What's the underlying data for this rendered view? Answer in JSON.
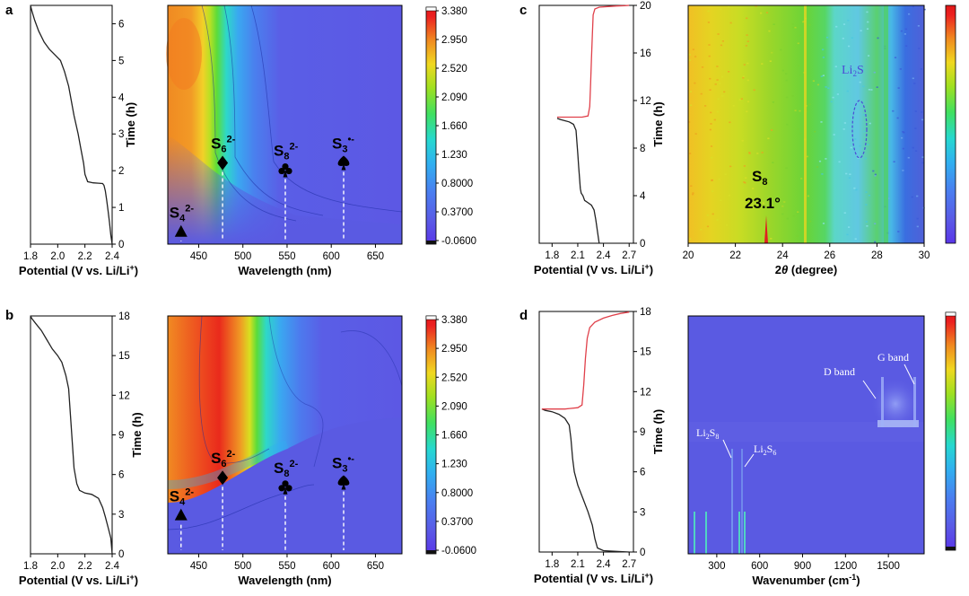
{
  "panels": {
    "a": {
      "letter": "a"
    },
    "b": {
      "letter": "b"
    },
    "c": {
      "letter": "c"
    },
    "d": {
      "letter": "d"
    }
  },
  "colorbar_labels": [
    "3.380",
    "2.950",
    "2.520",
    "2.090",
    "1.660",
    "1.230",
    "0.8000",
    "0.3700",
    "-0.0600"
  ],
  "colors": {
    "curve_discharge": "#222222",
    "curve_charge": "#e0404a",
    "map_background": "#5a5ae0",
    "marker_line": "#ffffff"
  },
  "chart_data": [
    {
      "id": "a-potential",
      "type": "line",
      "xlabel_main": "Potential (V vs. Li/Li",
      "xlabel_sup": "+",
      "xlabel_close": ")",
      "ylabel": "Time (h)",
      "xlim": [
        1.8,
        2.4
      ],
      "ylim": [
        0,
        6.5
      ],
      "xticks": [
        "1.8",
        "2.0",
        "2.2",
        "2.4"
      ],
      "xtick_values": [
        1.8,
        2.0,
        2.2,
        2.4
      ],
      "yticks": [
        "0",
        "1",
        "2",
        "3",
        "4",
        "5",
        "6"
      ],
      "ytick_values": [
        0,
        1,
        2,
        3,
        4,
        5,
        6
      ],
      "series": [
        {
          "x": [
            2.4,
            2.39,
            2.38,
            2.37,
            2.36,
            2.35,
            2.34,
            2.33,
            2.3,
            2.26,
            2.22,
            2.2,
            2.19,
            2.17,
            2.15,
            2.12,
            2.1,
            2.08,
            2.05,
            2.02,
            1.98,
            1.94,
            1.9,
            1.86,
            1.83,
            1.81,
            1.8
          ],
          "y": [
            0.0,
            0.25,
            0.6,
            0.9,
            1.2,
            1.45,
            1.6,
            1.65,
            1.66,
            1.67,
            1.7,
            1.9,
            2.2,
            2.6,
            3.0,
            3.5,
            3.9,
            4.3,
            4.7,
            5.0,
            5.15,
            5.3,
            5.5,
            5.8,
            6.1,
            6.35,
            6.5
          ]
        }
      ]
    },
    {
      "id": "a-map",
      "type": "heatmap",
      "xlabel": "Wavelength (nm)",
      "xlim": [
        415,
        680
      ],
      "xticks": [
        "450",
        "500",
        "550",
        "600",
        "650"
      ],
      "xtick_values": [
        450,
        500,
        550,
        600,
        650
      ],
      "value_range": [
        -0.06,
        3.38
      ],
      "markers": [
        {
          "species": "S",
          "sub": "4",
          "sup": "2-",
          "shape": "triangle",
          "x": 430,
          "t_frac": 0.05
        },
        {
          "species": "S",
          "sub": "6",
          "sup": "2-",
          "shape": "diamond",
          "x": 477,
          "t_frac": 0.34
        },
        {
          "species": "S",
          "sub": "8",
          "sup": "2-",
          "shape": "club",
          "x": 548,
          "t_frac": 0.31
        },
        {
          "species": "S",
          "sub": "3",
          "sup": "•-",
          "shape": "spade",
          "x": 614,
          "t_frac": 0.34
        }
      ]
    },
    {
      "id": "b-potential",
      "type": "line",
      "xlabel_main": "Potential (V vs. Li/Li",
      "xlabel_sup": "+",
      "xlabel_close": ")",
      "ylabel": "Time (h)",
      "xlim": [
        1.8,
        2.4
      ],
      "ylim": [
        0,
        18
      ],
      "xticks": [
        "1.8",
        "2.0",
        "2.2",
        "2.4"
      ],
      "xtick_values": [
        1.8,
        2.0,
        2.2,
        2.4
      ],
      "yticks": [
        "0",
        "3",
        "6",
        "9",
        "12",
        "15",
        "18"
      ],
      "ytick_values": [
        0,
        3,
        6,
        9,
        12,
        15,
        18
      ],
      "series": [
        {
          "x": [
            2.4,
            2.39,
            2.37,
            2.35,
            2.33,
            2.3,
            2.25,
            2.2,
            2.16,
            2.14,
            2.12,
            2.11,
            2.1,
            2.09,
            2.08,
            2.06,
            2.03,
            2.0,
            1.96,
            1.92,
            1.88,
            1.84,
            1.81,
            1.8
          ],
          "y": [
            0.0,
            1.2,
            2.0,
            2.8,
            3.5,
            4.2,
            4.5,
            4.6,
            4.8,
            5.3,
            6.5,
            8.0,
            9.5,
            11.0,
            12.5,
            13.5,
            14.5,
            15.0,
            15.5,
            16.2,
            16.9,
            17.4,
            17.8,
            18.0
          ]
        }
      ]
    },
    {
      "id": "b-map",
      "type": "heatmap",
      "xlabel": "Wavelength (nm)",
      "xlim": [
        415,
        680
      ],
      "xticks": [
        "450",
        "500",
        "550",
        "600",
        "650"
      ],
      "xtick_values": [
        450,
        500,
        550,
        600,
        650
      ],
      "value_range": [
        -0.06,
        3.38
      ],
      "markers": [
        {
          "species": "S",
          "sub": "4",
          "sup": "2-",
          "shape": "triangle",
          "x": 430,
          "t_frac": 0.16
        },
        {
          "species": "S",
          "sub": "6",
          "sup": "2-",
          "shape": "diamond",
          "x": 477,
          "t_frac": 0.32
        },
        {
          "species": "S",
          "sub": "8",
          "sup": "2-",
          "shape": "club",
          "x": 548,
          "t_frac": 0.28
        },
        {
          "species": "S",
          "sub": "3",
          "sup": "•-",
          "shape": "spade",
          "x": 614,
          "t_frac": 0.3
        }
      ]
    },
    {
      "id": "c-potential",
      "type": "line",
      "xlabel_main": "Potential (V vs. Li/Li",
      "xlabel_sup": "+",
      "xlabel_close": ")",
      "ylabel": "Time (h)",
      "xlim": [
        1.65,
        2.75
      ],
      "ylim": [
        0,
        20
      ],
      "xticks": [
        "1.8",
        "2.1",
        "2.4",
        "2.7"
      ],
      "xtick_values": [
        1.8,
        2.1,
        2.4,
        2.7
      ],
      "yticks": [
        "0",
        "4",
        "8",
        "12",
        "16",
        "20"
      ],
      "ytick_values": [
        0,
        4,
        8,
        12,
        16,
        20
      ],
      "series": [
        {
          "name": "",
          "role": "discharge",
          "x": [
            2.35,
            2.33,
            2.31,
            2.29,
            2.26,
            2.22,
            2.18,
            2.16,
            2.14,
            2.13,
            2.12,
            2.11,
            2.1,
            2.09,
            2.08,
            2.05,
            2.0,
            1.95,
            1.9,
            1.86
          ],
          "y": [
            0.0,
            1.0,
            2.0,
            2.8,
            3.2,
            3.4,
            3.6,
            4.0,
            4.2,
            4.6,
            5.5,
            6.5,
            7.5,
            8.5,
            9.5,
            10.0,
            10.2,
            10.3,
            10.4,
            10.5
          ]
        },
        {
          "name": "",
          "role": "charge",
          "x": [
            1.86,
            1.95,
            2.05,
            2.15,
            2.22,
            2.24,
            2.25,
            2.26,
            2.27,
            2.28,
            2.3,
            2.35,
            2.45,
            2.55,
            2.65,
            2.7
          ],
          "y": [
            10.6,
            10.6,
            10.6,
            10.6,
            10.7,
            11.5,
            13.5,
            15.5,
            17.5,
            19.2,
            19.7,
            19.85,
            19.9,
            19.95,
            19.98,
            20.0
          ]
        }
      ]
    },
    {
      "id": "c-map",
      "type": "heatmap",
      "xlabel_theta": "θ",
      "xlabel_pre": "2",
      "xlabel_post": " (degree)",
      "xlim": [
        20,
        30
      ],
      "xticks": [
        "20",
        "22",
        "24",
        "26",
        "28",
        "30"
      ],
      "xtick_values": [
        20,
        22,
        24,
        26,
        28,
        30
      ],
      "annotations": {
        "s8_main": "S",
        "s8_sub": "8",
        "s8_angle": "23.1°",
        "li2s_main": "Li",
        "li2s_sub": "2",
        "li2s_tail": "S"
      }
    },
    {
      "id": "d-potential",
      "type": "line",
      "xlabel_main": "Potential (V vs. Li/Li",
      "xlabel_sup": "+",
      "xlabel_close": ")",
      "ylabel": "Time (h)",
      "xlim": [
        1.65,
        2.75
      ],
      "ylim": [
        0,
        18
      ],
      "xticks": [
        "1.8",
        "2.1",
        "2.4",
        "2.7"
      ],
      "xtick_values": [
        1.8,
        2.1,
        2.4,
        2.7
      ],
      "yticks": [
        "0",
        "3",
        "6",
        "9",
        "12",
        "15",
        "18"
      ],
      "ytick_values": [
        0,
        3,
        6,
        9,
        12,
        15,
        18
      ],
      "series": [
        {
          "name": "",
          "role": "discharge",
          "x": [
            2.7,
            2.55,
            2.4,
            2.33,
            2.3,
            2.27,
            2.22,
            2.16,
            2.1,
            2.06,
            2.04,
            2.02,
            2.0,
            1.95,
            1.88,
            1.8,
            1.72,
            1.68
          ],
          "y": [
            0.0,
            0.05,
            0.1,
            0.3,
            1.0,
            2.0,
            3.0,
            4.0,
            5.0,
            6.0,
            7.0,
            8.5,
            9.5,
            10.0,
            10.3,
            10.5,
            10.6,
            10.7
          ]
        },
        {
          "name": "",
          "role": "charge",
          "x": [
            1.68,
            1.8,
            1.95,
            2.1,
            2.15,
            2.17,
            2.19,
            2.21,
            2.24,
            2.3,
            2.4,
            2.5,
            2.6,
            2.7
          ],
          "y": [
            10.7,
            10.7,
            10.7,
            10.8,
            11.0,
            12.5,
            14.5,
            16.0,
            16.8,
            17.2,
            17.5,
            17.7,
            17.85,
            17.95
          ]
        }
      ]
    },
    {
      "id": "d-map",
      "type": "heatmap",
      "xlabel_main": "Wavenumber (cm",
      "xlabel_sup": "-1",
      "xlabel_close": ")",
      "xlim": [
        100,
        1750
      ],
      "xticks": [
        "300",
        "600",
        "900",
        "1200",
        "1500"
      ],
      "xtick_values": [
        300,
        600,
        900,
        1200,
        1500
      ],
      "annotations": {
        "li2s8_main": "Li",
        "li2s8_sub1": "2",
        "li2s8_mid": "S",
        "li2s8_sub2": "8",
        "li2s6_main": "Li",
        "li2s6_sub1": "2",
        "li2s6_mid": "S",
        "li2s6_sub2": "6",
        "d_band": "D band",
        "g_band": "G band"
      }
    }
  ]
}
